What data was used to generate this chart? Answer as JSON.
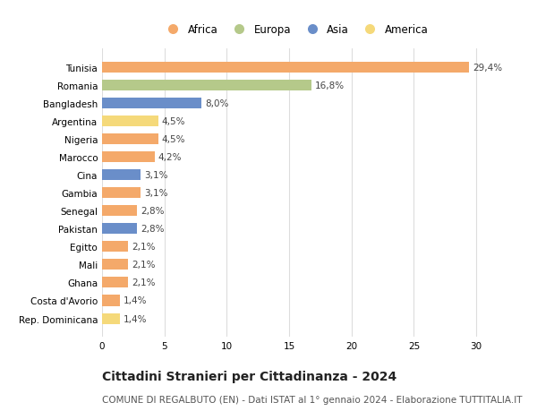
{
  "categories": [
    "Tunisia",
    "Romania",
    "Bangladesh",
    "Argentina",
    "Nigeria",
    "Marocco",
    "Cina",
    "Gambia",
    "Senegal",
    "Pakistan",
    "Egitto",
    "Mali",
    "Ghana",
    "Costa d'Avorio",
    "Rep. Dominicana"
  ],
  "values": [
    29.4,
    16.8,
    8.0,
    4.5,
    4.5,
    4.2,
    3.1,
    3.1,
    2.8,
    2.8,
    2.1,
    2.1,
    2.1,
    1.4,
    1.4
  ],
  "labels": [
    "29,4%",
    "16,8%",
    "8,0%",
    "4,5%",
    "4,5%",
    "4,2%",
    "3,1%",
    "3,1%",
    "2,8%",
    "2,8%",
    "2,1%",
    "2,1%",
    "2,1%",
    "1,4%",
    "1,4%"
  ],
  "continents": [
    "Africa",
    "Europa",
    "Asia",
    "America",
    "Africa",
    "Africa",
    "Asia",
    "Africa",
    "Africa",
    "Asia",
    "Africa",
    "Africa",
    "Africa",
    "Africa",
    "America"
  ],
  "continent_colors": {
    "Africa": "#F4A96A",
    "Europa": "#B5C98A",
    "Asia": "#6A8EC9",
    "America": "#F5D97A"
  },
  "legend_order": [
    "Africa",
    "Europa",
    "Asia",
    "America"
  ],
  "title": "Cittadini Stranieri per Cittadinanza - 2024",
  "subtitle": "COMUNE DI REGALBUTO (EN) - Dati ISTAT al 1° gennaio 2024 - Elaborazione TUTTITALIA.IT",
  "xlim": [
    0,
    31
  ],
  "xticks": [
    0,
    5,
    10,
    15,
    20,
    25,
    30
  ],
  "background_color": "#ffffff",
  "grid_color": "#dddddd",
  "bar_height": 0.6,
  "label_fontsize": 7.5,
  "title_fontsize": 10,
  "subtitle_fontsize": 7.5,
  "ytick_fontsize": 7.5,
  "xtick_fontsize": 7.5,
  "legend_fontsize": 8.5
}
